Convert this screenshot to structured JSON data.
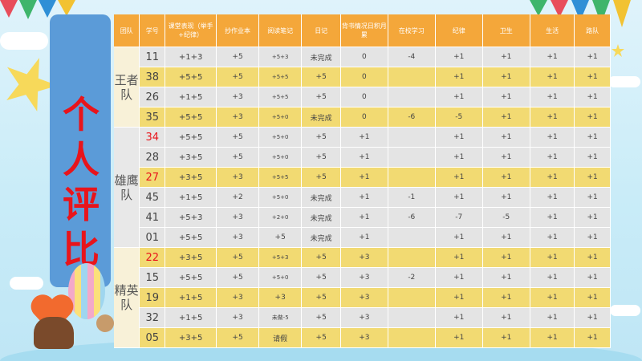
{
  "banner_title": [
    "个",
    "人",
    "评",
    "比"
  ],
  "headers": [
    "团队",
    "学号",
    "课堂表现（举手+纪律）",
    "抄作业本",
    "阅读笔记",
    "日记",
    "背书情况日积月累",
    "在校学习",
    "纪律",
    "卫生",
    "生活",
    "路队"
  ],
  "teams": [
    {
      "name": "王者队",
      "rows": [
        [
          "11",
          "+1+3",
          "+5",
          "+5+3",
          "未完成",
          "0",
          "-4",
          "+1",
          "+1",
          "+1",
          "+1"
        ],
        [
          "38",
          "+5+5",
          "+5",
          "+5+5",
          "+5",
          "0",
          "",
          "+1",
          "+1",
          "+1",
          "+1"
        ],
        [
          "26",
          "+1+5",
          "+3",
          "+5+5",
          "+5",
          "0",
          "",
          "+1",
          "+1",
          "+1",
          "+1"
        ],
        [
          "35",
          "+5+5",
          "+3",
          "+5+0",
          "未完成",
          "0",
          "-6",
          "-5",
          "+1",
          "+1",
          "+1"
        ]
      ]
    },
    {
      "name": "雄鹰队",
      "rows": [
        [
          "34",
          "+5+5",
          "+5",
          "+5+0",
          "+5",
          "+1",
          "",
          "+1",
          "+1",
          "+1",
          "+1"
        ],
        [
          "28",
          "+3+5",
          "+5",
          "+5+0",
          "+5",
          "+1",
          "",
          "+1",
          "+1",
          "+1",
          "+1"
        ],
        [
          "27",
          "+3+5",
          "+3",
          "+5+5",
          "+5",
          "+1",
          "",
          "+1",
          "+1",
          "+1",
          "+1"
        ],
        [
          "45",
          "+1+5",
          "+2",
          "+5+0",
          "未完成",
          "+1",
          "-1",
          "+1",
          "+1",
          "+1",
          "+1"
        ],
        [
          "41",
          "+5+3",
          "+3",
          "+2+0",
          "未完成",
          "+1",
          "-6",
          "-7",
          "-5",
          "+1",
          "+1"
        ],
        [
          "01",
          "+5+5",
          "+3",
          "+5",
          "未完成",
          "+1",
          "",
          "+1",
          "+1",
          "+1",
          "+1"
        ]
      ]
    },
    {
      "name": "精英队",
      "rows": [
        [
          "22",
          "+3+5",
          "+5",
          "+5+3",
          "+5",
          "+3",
          "",
          "+1",
          "+1",
          "+1",
          "+1"
        ],
        [
          "15",
          "+5+5",
          "+5",
          "+5+0",
          "+5",
          "+3",
          "-2",
          "+1",
          "+1",
          "+1",
          "+1"
        ],
        [
          "19",
          "+1+5",
          "+3",
          "+3",
          "+5",
          "+3",
          "",
          "+1",
          "+1",
          "+1",
          "+1"
        ],
        [
          "32",
          "+1+5",
          "+3",
          "未做-5",
          "+5",
          "+3",
          "",
          "+1",
          "+1",
          "+1",
          "+1"
        ],
        [
          "05",
          "+3+5",
          "+5",
          "请假",
          "+5",
          "+3",
          "",
          "+1",
          "+1",
          "+1",
          "+1"
        ]
      ]
    }
  ]
}
